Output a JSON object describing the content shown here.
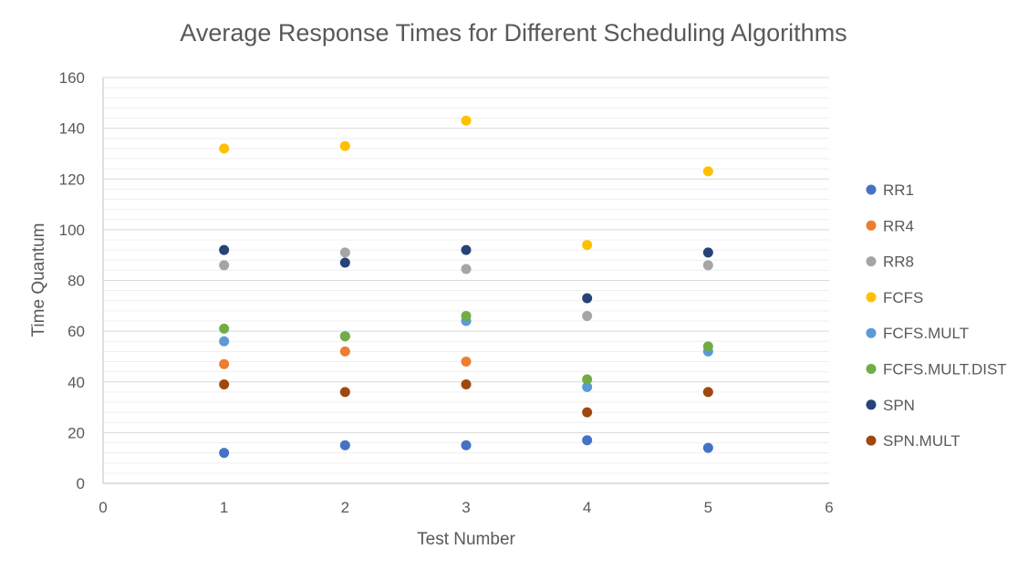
{
  "chart_data": {
    "type": "scatter",
    "title": "Average Response Times for Different Scheduling Algorithms",
    "xlabel": "Test Number",
    "ylabel": "Time Quantum",
    "xlim": [
      0,
      6
    ],
    "ylim": [
      0,
      160
    ],
    "x_ticks": [
      "0",
      "1",
      "2",
      "3",
      "4",
      "5",
      "6"
    ],
    "y_ticks": [
      "0",
      "20",
      "40",
      "60",
      "80",
      "100",
      "120",
      "140",
      "160"
    ],
    "grid": "horizontal major and minor",
    "legend": "right",
    "series": [
      {
        "name": "RR1",
        "color": "#4472C4",
        "x": [
          1,
          2,
          3,
          4,
          5
        ],
        "y": [
          12,
          15,
          15,
          17,
          14
        ]
      },
      {
        "name": "RR4",
        "color": "#ED7D31",
        "x": [
          1,
          2,
          3
        ],
        "y": [
          47,
          52,
          48
        ]
      },
      {
        "name": "RR8",
        "color": "#A5A5A5",
        "x": [
          1,
          2,
          3,
          4,
          5
        ],
        "y": [
          86,
          91,
          84.5,
          66,
          86
        ]
      },
      {
        "name": "FCFS",
        "color": "#FFC000",
        "x": [
          1,
          2,
          3,
          4,
          5
        ],
        "y": [
          132,
          133,
          143,
          94,
          123
        ]
      },
      {
        "name": "FCFS.MULT",
        "color": "#5B9BD5",
        "x": [
          1,
          2,
          3,
          4,
          5
        ],
        "y": [
          56,
          58,
          64,
          38,
          52
        ]
      },
      {
        "name": "FCFS.MULT.DIST",
        "color": "#70AD47",
        "x": [
          1,
          2,
          3,
          4,
          5
        ],
        "y": [
          61,
          58,
          66,
          41,
          54
        ]
      },
      {
        "name": "SPN",
        "color": "#264478",
        "x": [
          1,
          2,
          3,
          4,
          5
        ],
        "y": [
          92,
          87,
          92,
          73,
          91
        ]
      },
      {
        "name": "SPN.MULT",
        "color": "#9E480E",
        "x": [
          1,
          2,
          3,
          4,
          5
        ],
        "y": [
          39,
          36,
          39,
          28,
          36
        ]
      }
    ]
  }
}
